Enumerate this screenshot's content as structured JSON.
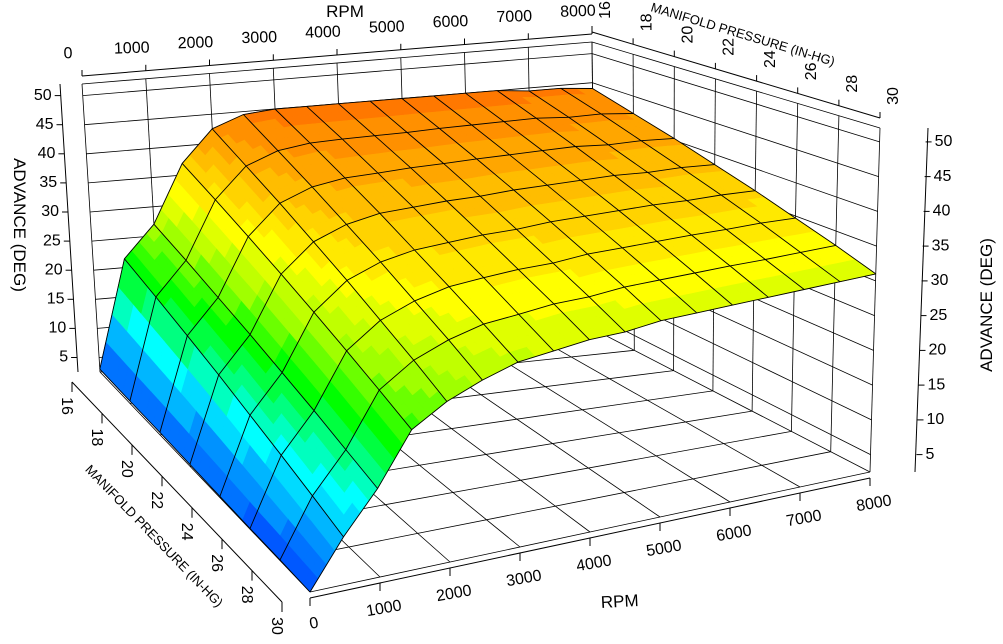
{
  "chart_data": {
    "type": "surface",
    "x_axis": {
      "label": "RPM",
      "values": [
        0,
        500,
        1000,
        1500,
        2000,
        2500,
        3000,
        3500,
        4000,
        4500,
        5000,
        5500,
        6000,
        6500,
        7000,
        7500,
        8000
      ],
      "ticks": [
        0,
        1000,
        2000,
        3000,
        4000,
        5000,
        6000,
        7000,
        8000
      ],
      "range": [
        0,
        8000
      ]
    },
    "y_axis": {
      "label": "MANIFOLD PRESSURE (IN-HG)",
      "values": [
        16,
        18,
        20,
        22,
        24,
        26,
        28,
        30
      ],
      "ticks": [
        16,
        18,
        20,
        22,
        24,
        26,
        28,
        30
      ],
      "range": [
        16,
        30
      ]
    },
    "z_axis": {
      "label": "ADVANCE (DEG)",
      "ticks": [
        5,
        10,
        15,
        20,
        25,
        30,
        35,
        40,
        45,
        50
      ],
      "range": [
        2.5,
        52
      ]
    },
    "z": [
      [
        3.0,
        21.5,
        27.0,
        37.0,
        42.5,
        44.5,
        45.0,
        45.0,
        45.0,
        45.0,
        45.0,
        45.0,
        45.0,
        45.0,
        44.5,
        44.5,
        44.0
      ],
      [
        2.9,
        19.8,
        25.4,
        35.0,
        40.1,
        42.1,
        42.8,
        42.9,
        42.9,
        42.9,
        43.0,
        43.0,
        43.0,
        43.0,
        42.6,
        42.6,
        42.1
      ],
      [
        2.9,
        18.1,
        23.7,
        33.0,
        37.8,
        39.8,
        40.6,
        40.7,
        40.9,
        40.9,
        41.0,
        41.0,
        41.0,
        41.0,
        40.6,
        40.6,
        40.3
      ],
      [
        2.8,
        16.4,
        22.1,
        31.0,
        35.4,
        37.4,
        38.4,
        38.6,
        38.8,
        38.8,
        39.0,
        39.0,
        39.0,
        39.0,
        38.7,
        38.7,
        38.4
      ],
      [
        2.7,
        14.6,
        20.4,
        29.0,
        33.1,
        35.1,
        36.1,
        36.4,
        36.7,
        36.7,
        37.0,
        37.0,
        37.0,
        37.0,
        36.8,
        36.8,
        36.6
      ],
      [
        2.6,
        12.9,
        18.8,
        27.0,
        30.7,
        32.7,
        33.9,
        34.3,
        34.6,
        34.6,
        35.0,
        35.0,
        35.0,
        35.0,
        34.9,
        34.9,
        34.7
      ],
      [
        2.6,
        11.2,
        17.1,
        25.0,
        28.4,
        30.4,
        31.7,
        32.1,
        32.6,
        32.6,
        33.0,
        33.0,
        33.0,
        33.0,
        32.9,
        32.9,
        32.9
      ],
      [
        2.5,
        9.5,
        15.5,
        23.0,
        26.0,
        28.0,
        29.5,
        30.0,
        30.5,
        30.5,
        31.0,
        31.0,
        31.0,
        31.0,
        31.0,
        31.0,
        31.0
      ]
    ],
    "colormap": [
      {
        "z": 0,
        "color": "#0030ff"
      },
      {
        "z": 6,
        "color": "#0080ff"
      },
      {
        "z": 13,
        "color": "#00ffff"
      },
      {
        "z": 18,
        "color": "#00ff60"
      },
      {
        "z": 21,
        "color": "#00ff00"
      },
      {
        "z": 27,
        "color": "#a0ff00"
      },
      {
        "z": 33,
        "color": "#ffff00"
      },
      {
        "z": 38,
        "color": "#ffc800"
      },
      {
        "z": 43,
        "color": "#ff9000"
      },
      {
        "z": 47,
        "color": "#ff6000"
      },
      {
        "z": 52,
        "color": "#ff4000"
      }
    ],
    "grid": true,
    "mesh_lines": true
  }
}
